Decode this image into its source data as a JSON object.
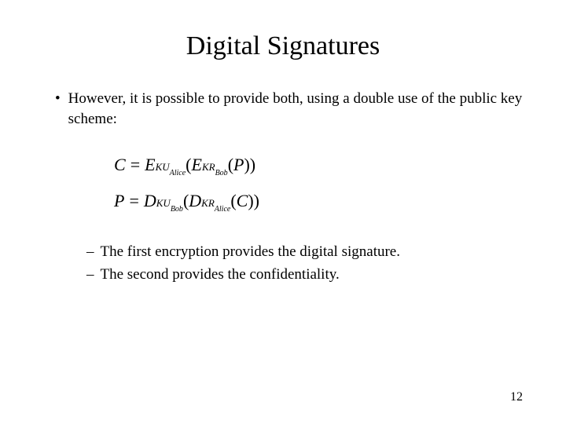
{
  "title": "Digital Signatures",
  "mainBullet": "However, it is possible to provide both, using a double use of the public key scheme:",
  "equations": {
    "eq1": {
      "lhs": "C",
      "func1": "E",
      "sub1a": "KU",
      "sub1b": "Alice",
      "func2": "E",
      "sub2a": "KR",
      "sub2b": "Bob",
      "arg": "P"
    },
    "eq2": {
      "lhs": "P",
      "func1": "D",
      "sub1a": "KU",
      "sub1b": "Bob",
      "func2": "D",
      "sub2a": "KR",
      "sub2b": "Alice",
      "arg": "C"
    }
  },
  "subBullets": [
    "The first encryption provides the digital signature.",
    "The second provides the confidentiality."
  ],
  "pageNumber": "12",
  "colors": {
    "background": "#ffffff",
    "text": "#000000"
  },
  "typography": {
    "fontFamily": "Times New Roman",
    "titleSize": 34,
    "bodySize": 19,
    "equationSize": 22
  }
}
